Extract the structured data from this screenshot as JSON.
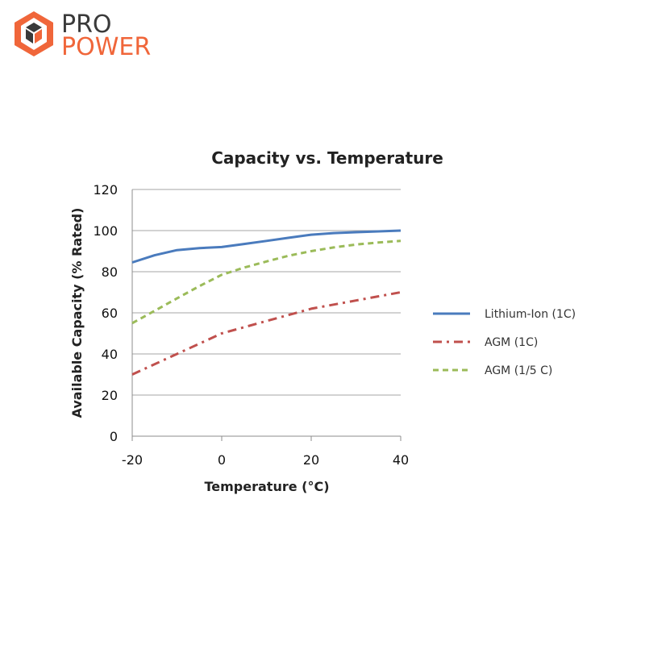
{
  "logo": {
    "line1": "PRO",
    "line2": "POWER",
    "dark_color": "#3a3a3a",
    "accent_color": "#f0663a"
  },
  "chart_data": {
    "type": "line",
    "title": "Capacity vs. Temperature",
    "xlabel": "Temperature (°C)",
    "ylabel": "Available Capacity (% Rated)",
    "xlim": [
      -20,
      40
    ],
    "ylim": [
      0,
      120
    ],
    "xticks": [
      -20,
      0,
      20,
      40
    ],
    "yticks": [
      0,
      20,
      40,
      60,
      80,
      100,
      120
    ],
    "grid": "horizontal",
    "legend_position": "right",
    "series": [
      {
        "name": "Lithium-Ion (1C)",
        "color": "#4a7bbd",
        "style": "solid",
        "x": [
          -20,
          -15,
          -10,
          -5,
          0,
          5,
          10,
          15,
          20,
          25,
          30,
          35,
          40
        ],
        "y": [
          84.5,
          88,
          90.5,
          91.5,
          92,
          93.5,
          95,
          96.5,
          98,
          98.8,
          99.2,
          99.6,
          100
        ]
      },
      {
        "name": "AGM (1C)",
        "color": "#c0504d",
        "style": "dashdot",
        "x": [
          -20,
          -10,
          0,
          10,
          20,
          30,
          40
        ],
        "y": [
          30,
          40,
          50,
          56,
          62,
          66,
          70
        ]
      },
      {
        "name": "AGM (1/5 C)",
        "color": "#9bbb59",
        "style": "dashed",
        "x": [
          -20,
          -15,
          -10,
          -5,
          0,
          5,
          10,
          15,
          20,
          25,
          30,
          35,
          40
        ],
        "y": [
          55,
          61,
          67,
          73,
          78.5,
          82,
          85,
          87.8,
          90,
          91.8,
          93.2,
          94.2,
          95
        ]
      }
    ]
  }
}
